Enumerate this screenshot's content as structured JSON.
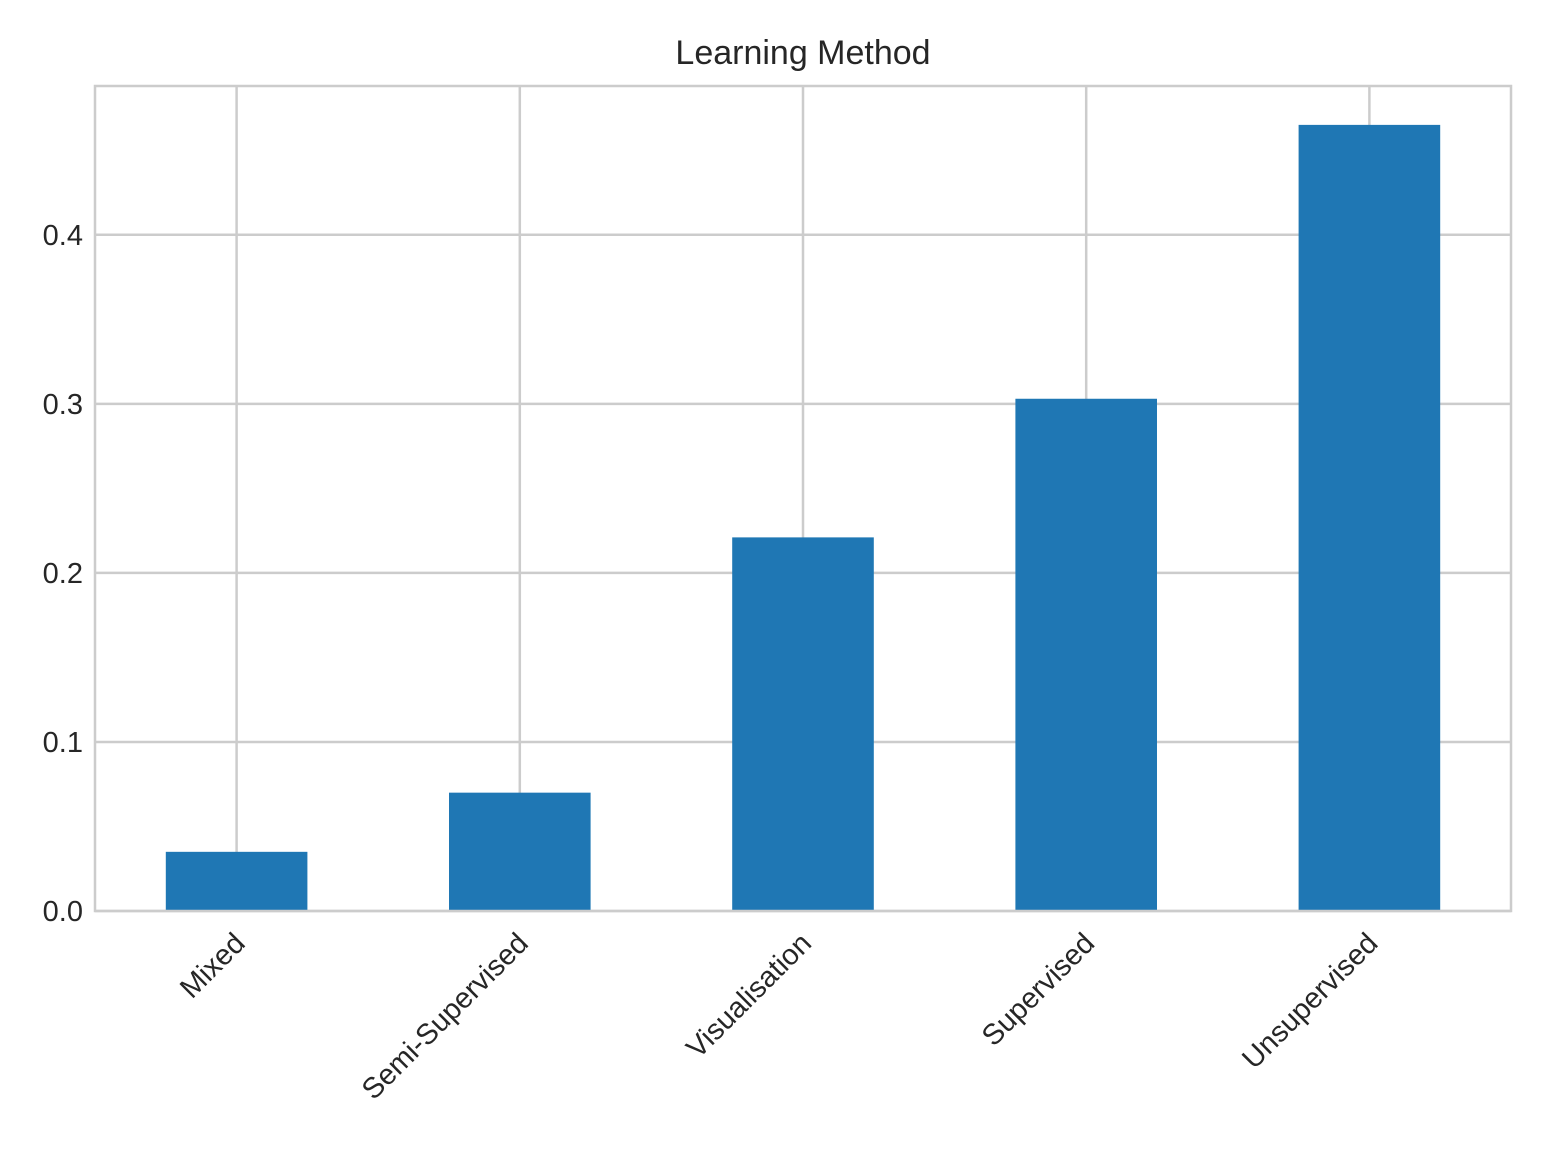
{
  "chart_data": {
    "type": "bar",
    "title": "Learning Method",
    "xlabel": "",
    "ylabel": "",
    "categories": [
      "Mixed",
      "Semi-Supervised",
      "Visualisation",
      "Supervised",
      "Unsupervised"
    ],
    "values": [
      0.035,
      0.07,
      0.221,
      0.303,
      0.465
    ],
    "ylim": [
      0,
      0.488
    ],
    "yticks": [
      0.0,
      0.1,
      0.2,
      0.3,
      0.4
    ],
    "ytick_labels": [
      "0.0",
      "0.1",
      "0.2",
      "0.3",
      "0.4"
    ],
    "bar_color": "#1f77b4",
    "grid": true,
    "x_tick_rotation_degrees": 45
  }
}
